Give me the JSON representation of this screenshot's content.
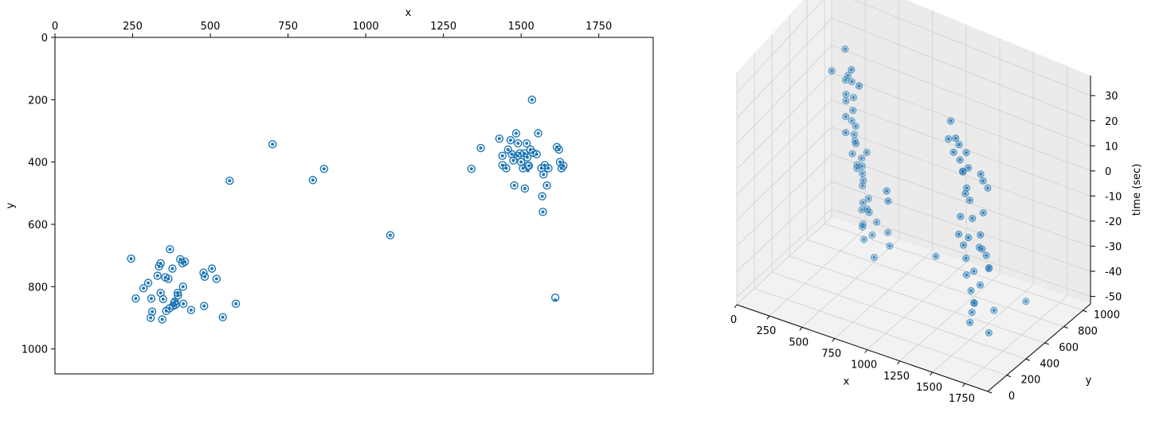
{
  "chart_data": [
    {
      "type": "scatter",
      "title": "",
      "xlabel": "x",
      "ylabel": "y",
      "xlim": [
        0,
        1925
      ],
      "ylim": [
        1080,
        0
      ],
      "x_axis_position": "top",
      "y_inverted": true,
      "xticks": [
        0,
        250,
        500,
        750,
        1000,
        1250,
        1500,
        1750
      ],
      "yticks": [
        0,
        200,
        400,
        600,
        800,
        1000
      ],
      "grid": false,
      "color": "#1f77b4",
      "series": [
        {
          "marker": "small filled dot",
          "points": [
            [
              245,
              710
            ],
            [
              260,
              838
            ],
            [
              285,
              805
            ],
            [
              300,
              788
            ],
            [
              310,
              838
            ],
            [
              313,
              880
            ],
            [
              308,
              900
            ],
            [
              330,
              765
            ],
            [
              335,
              735
            ],
            [
              340,
              725
            ],
            [
              340,
              820
            ],
            [
              345,
              905
            ],
            [
              348,
              840
            ],
            [
              355,
              770
            ],
            [
              358,
              878
            ],
            [
              365,
              775
            ],
            [
              368,
              870
            ],
            [
              370,
              680
            ],
            [
              378,
              742
            ],
            [
              380,
              862
            ],
            [
              384,
              852
            ],
            [
              386,
              848
            ],
            [
              388,
              858
            ],
            [
              395,
              820
            ],
            [
              396,
              828
            ],
            [
              403,
              712
            ],
            [
              410,
              725
            ],
            [
              412,
              800
            ],
            [
              413,
              855
            ],
            [
              418,
              720
            ],
            [
              438,
              875
            ],
            [
              478,
              755
            ],
            [
              480,
              862
            ],
            [
              482,
              768
            ],
            [
              505,
              742
            ],
            [
              520,
              775
            ],
            [
              540,
              898
            ],
            [
              582,
              855
            ],
            [
              562,
              460
            ],
            [
              700,
              343
            ],
            [
              830,
              458
            ],
            [
              866,
              422
            ],
            [
              1079,
              635
            ],
            [
              1340,
              422
            ],
            [
              1370,
              355
            ],
            [
              1430,
              325
            ],
            [
              1440,
              380
            ],
            [
              1440,
              410
            ],
            [
              1452,
              420
            ],
            [
              1458,
              360
            ],
            [
              1466,
              330
            ],
            [
              1470,
              375
            ],
            [
              1475,
              395
            ],
            [
              1478,
              475
            ],
            [
              1484,
              308
            ],
            [
              1488,
              380
            ],
            [
              1490,
              340
            ],
            [
              1496,
              372
            ],
            [
              1500,
              400
            ],
            [
              1506,
              420
            ],
            [
              1510,
              372
            ],
            [
              1512,
              485
            ],
            [
              1518,
              340
            ],
            [
              1520,
              385
            ],
            [
              1525,
              412
            ],
            [
              1530,
              360
            ],
            [
              1535,
              200
            ],
            [
              1538,
              370
            ],
            [
              1550,
              375
            ],
            [
              1555,
              308
            ],
            [
              1565,
              420
            ],
            [
              1568,
              510
            ],
            [
              1570,
              560
            ],
            [
              1572,
              440
            ],
            [
              1576,
              410
            ],
            [
              1583,
              475
            ],
            [
              1588,
              420
            ],
            [
              1615,
              352
            ],
            [
              1622,
              360
            ],
            [
              1625,
              400
            ],
            [
              1630,
              420
            ],
            [
              1636,
              412
            ],
            [
              1522,
              428
            ],
            [
              1610,
              843
            ]
          ]
        },
        {
          "marker": "open circle",
          "points": [
            [
              245,
              710
            ],
            [
              260,
              838
            ],
            [
              285,
              805
            ],
            [
              300,
              788
            ],
            [
              310,
              838
            ],
            [
              313,
              880
            ],
            [
              308,
              900
            ],
            [
              330,
              765
            ],
            [
              335,
              735
            ],
            [
              340,
              725
            ],
            [
              340,
              820
            ],
            [
              345,
              905
            ],
            [
              348,
              840
            ],
            [
              355,
              770
            ],
            [
              358,
              878
            ],
            [
              365,
              775
            ],
            [
              368,
              870
            ],
            [
              370,
              680
            ],
            [
              378,
              742
            ],
            [
              380,
              862
            ],
            [
              384,
              852
            ],
            [
              386,
              848
            ],
            [
              388,
              858
            ],
            [
              395,
              820
            ],
            [
              396,
              828
            ],
            [
              403,
              712
            ],
            [
              410,
              725
            ],
            [
              412,
              800
            ],
            [
              413,
              855
            ],
            [
              418,
              720
            ],
            [
              438,
              875
            ],
            [
              478,
              755
            ],
            [
              480,
              862
            ],
            [
              482,
              768
            ],
            [
              505,
              742
            ],
            [
              520,
              775
            ],
            [
              540,
              898
            ],
            [
              582,
              855
            ],
            [
              562,
              460
            ],
            [
              700,
              343
            ],
            [
              830,
              458
            ],
            [
              866,
              422
            ],
            [
              1079,
              635
            ],
            [
              1340,
              422
            ],
            [
              1370,
              355
            ],
            [
              1430,
              325
            ],
            [
              1440,
              380
            ],
            [
              1440,
              410
            ],
            [
              1452,
              420
            ],
            [
              1458,
              360
            ],
            [
              1466,
              330
            ],
            [
              1470,
              375
            ],
            [
              1475,
              395
            ],
            [
              1478,
              475
            ],
            [
              1484,
              308
            ],
            [
              1488,
              380
            ],
            [
              1490,
              340
            ],
            [
              1496,
              372
            ],
            [
              1500,
              400
            ],
            [
              1506,
              420
            ],
            [
              1510,
              372
            ],
            [
              1512,
              485
            ],
            [
              1518,
              340
            ],
            [
              1520,
              385
            ],
            [
              1525,
              412
            ],
            [
              1530,
              360
            ],
            [
              1535,
              200
            ],
            [
              1538,
              370
            ],
            [
              1550,
              375
            ],
            [
              1555,
              308
            ],
            [
              1565,
              420
            ],
            [
              1568,
              510
            ],
            [
              1570,
              560
            ],
            [
              1572,
              440
            ],
            [
              1576,
              410
            ],
            [
              1583,
              475
            ],
            [
              1588,
              420
            ],
            [
              1615,
              352
            ],
            [
              1622,
              360
            ],
            [
              1625,
              400
            ],
            [
              1630,
              420
            ],
            [
              1636,
              412
            ],
            [
              1522,
              412
            ],
            [
              1610,
              835
            ]
          ]
        }
      ]
    },
    {
      "type": "scatter3d",
      "title": "",
      "xlabel": "x",
      "ylabel": "y",
      "zlabel": "time (sec)",
      "xlim": [
        0,
        1925
      ],
      "ylim": [
        0,
        1080
      ],
      "zlim": [
        -53,
        38
      ],
      "xticks": [
        0,
        250,
        500,
        750,
        1000,
        1250,
        1500,
        1750
      ],
      "yticks": [
        0,
        200,
        400,
        600,
        800,
        1000
      ],
      "zticks": [
        30,
        20,
        10,
        0,
        -10,
        -20,
        -30,
        -40,
        -50
      ],
      "grid": true,
      "color": "#1f77b4",
      "points": [
        [
          245,
          710,
          18
        ],
        [
          260,
          838,
          22
        ],
        [
          285,
          805,
          12
        ],
        [
          300,
          788,
          5
        ],
        [
          310,
          838,
          -4
        ],
        [
          313,
          880,
          -14
        ],
        [
          308,
          900,
          -24
        ],
        [
          330,
          765,
          16
        ],
        [
          335,
          735,
          10
        ],
        [
          340,
          725,
          2
        ],
        [
          340,
          820,
          -8
        ],
        [
          345,
          905,
          -30
        ],
        [
          348,
          840,
          -20
        ],
        [
          355,
          770,
          14
        ],
        [
          358,
          878,
          -38
        ],
        [
          365,
          775,
          8
        ],
        [
          368,
          870,
          -44
        ],
        [
          370,
          680,
          -2
        ],
        [
          378,
          742,
          -12
        ],
        [
          380,
          862,
          -26
        ],
        [
          384,
          852,
          -34
        ],
        [
          386,
          848,
          -42
        ],
        [
          388,
          858,
          -48
        ],
        [
          395,
          820,
          -16
        ],
        [
          396,
          828,
          -22
        ],
        [
          403,
          712,
          6
        ],
        [
          410,
          725,
          -6
        ],
        [
          412,
          800,
          -18
        ],
        [
          413,
          855,
          -36
        ],
        [
          418,
          720,
          0
        ],
        [
          438,
          875,
          -46
        ],
        [
          478,
          755,
          -10
        ],
        [
          480,
          862,
          -40
        ],
        [
          482,
          768,
          -28
        ],
        [
          505,
          742,
          -32
        ],
        [
          520,
          775,
          -50
        ],
        [
          540,
          898,
          -44
        ],
        [
          582,
          855,
          -47
        ],
        [
          562,
          460,
          34
        ],
        [
          700,
          343,
          35
        ],
        [
          830,
          458,
          -8
        ],
        [
          866,
          422,
          -10
        ],
        [
          1079,
          635,
          -35
        ],
        [
          1340,
          422,
          32
        ],
        [
          1370,
          355,
          28
        ],
        [
          1430,
          325,
          25
        ],
        [
          1440,
          380,
          20
        ],
        [
          1440,
          410,
          14
        ],
        [
          1452,
          420,
          5
        ],
        [
          1458,
          360,
          -2
        ],
        [
          1466,
          330,
          -8
        ],
        [
          1470,
          375,
          -14
        ],
        [
          1475,
          395,
          -20
        ],
        [
          1478,
          475,
          -28
        ],
        [
          1484,
          308,
          30
        ],
        [
          1488,
          380,
          24
        ],
        [
          1490,
          340,
          18
        ],
        [
          1496,
          372,
          10
        ],
        [
          1500,
          400,
          4
        ],
        [
          1506,
          420,
          -4
        ],
        [
          1510,
          372,
          -10
        ],
        [
          1512,
          485,
          -18
        ],
        [
          1518,
          340,
          -24
        ],
        [
          1520,
          385,
          -32
        ],
        [
          1525,
          412,
          -38
        ],
        [
          1530,
          360,
          -44
        ],
        [
          1535,
          200,
          38
        ],
        [
          1538,
          370,
          -40
        ],
        [
          1550,
          375,
          -36
        ],
        [
          1555,
          308,
          22
        ],
        [
          1565,
          420,
          -30
        ],
        [
          1568,
          510,
          -26
        ],
        [
          1570,
          560,
          -45
        ],
        [
          1572,
          440,
          12
        ],
        [
          1576,
          410,
          16
        ],
        [
          1583,
          475,
          8
        ],
        [
          1588,
          420,
          0
        ],
        [
          1615,
          352,
          -6
        ],
        [
          1622,
          360,
          -12
        ],
        [
          1625,
          400,
          -16
        ],
        [
          1630,
          420,
          -22
        ],
        [
          1636,
          412,
          -48
        ],
        [
          1610,
          843,
          -50
        ]
      ]
    }
  ]
}
